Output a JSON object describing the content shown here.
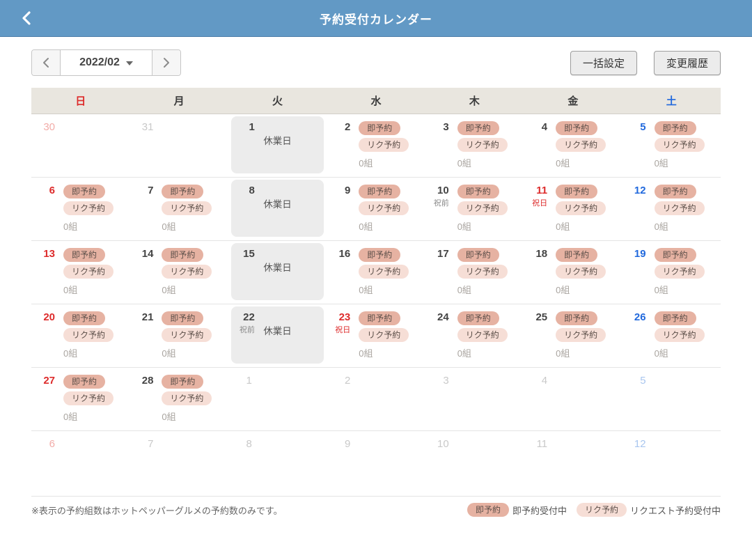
{
  "topbar": {
    "title": "予約受付カレンダー"
  },
  "toolbar": {
    "month_label": "2022/02",
    "batch_button": "一括設定",
    "history_button": "変更履歴"
  },
  "calendar": {
    "weekdays": [
      {
        "label": "日",
        "tone": "sun"
      },
      {
        "label": "月",
        "tone": "normal"
      },
      {
        "label": "火",
        "tone": "normal"
      },
      {
        "label": "水",
        "tone": "normal"
      },
      {
        "label": "木",
        "tone": "normal"
      },
      {
        "label": "金",
        "tone": "normal"
      },
      {
        "label": "土",
        "tone": "sat"
      }
    ],
    "labels": {
      "instant_badge": "即予約",
      "request_badge": "リク予約",
      "closed": "休業日",
      "pre_holiday": "祝前",
      "holiday": "祝日"
    },
    "weeks": [
      [
        {
          "day": "30",
          "tone": "muted-sun"
        },
        {
          "day": "31",
          "tone": "muted"
        },
        {
          "day": "1",
          "tone": "normal",
          "closed": true
        },
        {
          "day": "2",
          "tone": "normal",
          "badges": true,
          "count": "0組"
        },
        {
          "day": "3",
          "tone": "normal",
          "badges": true,
          "count": "0組"
        },
        {
          "day": "4",
          "tone": "normal",
          "badges": true,
          "count": "0組"
        },
        {
          "day": "5",
          "tone": "sat",
          "badges": true,
          "count": "0組"
        }
      ],
      [
        {
          "day": "6",
          "tone": "sun",
          "badges": true,
          "count": "0組"
        },
        {
          "day": "7",
          "tone": "normal",
          "badges": true,
          "count": "0組"
        },
        {
          "day": "8",
          "tone": "normal",
          "closed": true
        },
        {
          "day": "9",
          "tone": "normal",
          "badges": true,
          "count": "0組"
        },
        {
          "day": "10",
          "tone": "normal",
          "note": "祝前",
          "note_tone": "gray",
          "badges": true,
          "count": "0組"
        },
        {
          "day": "11",
          "tone": "sun",
          "note": "祝日",
          "note_tone": "red",
          "badges": true,
          "count": "0組"
        },
        {
          "day": "12",
          "tone": "sat",
          "badges": true,
          "count": "0組"
        }
      ],
      [
        {
          "day": "13",
          "tone": "sun",
          "badges": true,
          "count": "0組"
        },
        {
          "day": "14",
          "tone": "normal",
          "badges": true,
          "count": "0組"
        },
        {
          "day": "15",
          "tone": "normal",
          "closed": true
        },
        {
          "day": "16",
          "tone": "normal",
          "badges": true,
          "count": "0組"
        },
        {
          "day": "17",
          "tone": "normal",
          "badges": true,
          "count": "0組"
        },
        {
          "day": "18",
          "tone": "normal",
          "badges": true,
          "count": "0組"
        },
        {
          "day": "19",
          "tone": "sat",
          "badges": true,
          "count": "0組"
        }
      ],
      [
        {
          "day": "20",
          "tone": "sun",
          "badges": true,
          "count": "0組"
        },
        {
          "day": "21",
          "tone": "normal",
          "badges": true,
          "count": "0組"
        },
        {
          "day": "22",
          "tone": "normal",
          "closed": true,
          "note": "祝前",
          "note_tone": "gray"
        },
        {
          "day": "23",
          "tone": "sun",
          "note": "祝日",
          "note_tone": "red",
          "badges": true,
          "count": "0組"
        },
        {
          "day": "24",
          "tone": "normal",
          "badges": true,
          "count": "0組"
        },
        {
          "day": "25",
          "tone": "normal",
          "badges": true,
          "count": "0組"
        },
        {
          "day": "26",
          "tone": "sat",
          "badges": true,
          "count": "0組"
        }
      ],
      [
        {
          "day": "27",
          "tone": "sun",
          "badges": true,
          "count": "0組"
        },
        {
          "day": "28",
          "tone": "normal",
          "badges": true,
          "count": "0組"
        },
        {
          "day": "1",
          "tone": "muted"
        },
        {
          "day": "2",
          "tone": "muted"
        },
        {
          "day": "3",
          "tone": "muted"
        },
        {
          "day": "4",
          "tone": "muted"
        },
        {
          "day": "5",
          "tone": "muted-sat"
        }
      ],
      [
        {
          "day": "6",
          "tone": "muted-sun"
        },
        {
          "day": "7",
          "tone": "muted"
        },
        {
          "day": "8",
          "tone": "muted"
        },
        {
          "day": "9",
          "tone": "muted"
        },
        {
          "day": "10",
          "tone": "muted"
        },
        {
          "day": "11",
          "tone": "muted"
        },
        {
          "day": "12",
          "tone": "muted-sat"
        }
      ]
    ]
  },
  "footer": {
    "note": "※表示の予約組数はホットペッパーグルメの予約数のみです。",
    "legend": [
      {
        "badge": "即予約",
        "type": "instant",
        "label": "即予約受付中"
      },
      {
        "badge": "リク予約",
        "type": "request",
        "label": "リクエスト予約受付中"
      }
    ]
  },
  "colors": {
    "topbar_bg": "#6299c5",
    "sunday_red": "#dd2b2b",
    "saturday_blue": "#2169dd",
    "instant_badge_bg": "#e6b2a2",
    "request_badge_bg": "#f6ded6",
    "closed_cell_bg": "#ececec",
    "weekday_header_bg": "#e9e6df"
  }
}
